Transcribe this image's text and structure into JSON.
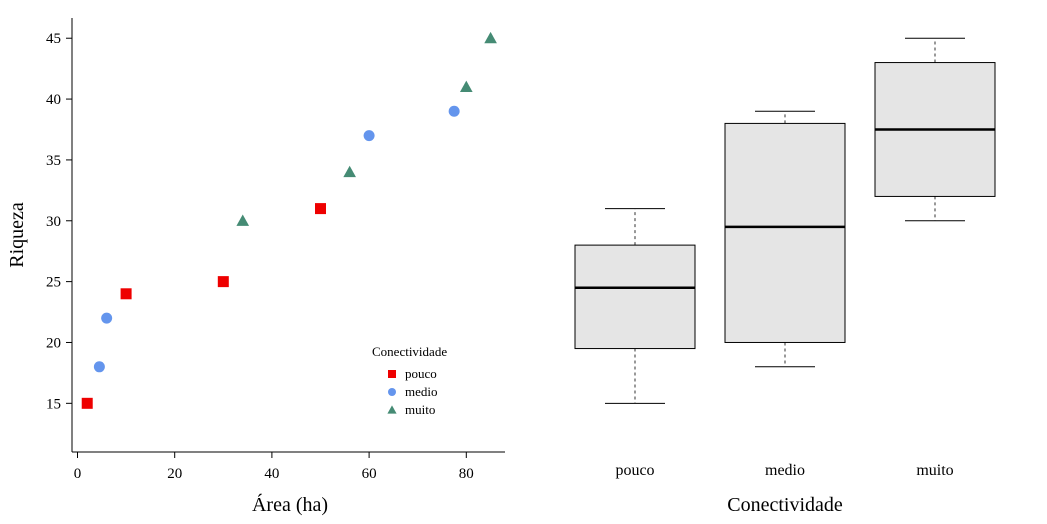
{
  "chart_data": [
    {
      "type": "scatter",
      "xlabel": "Área (ha)",
      "ylabel": "Riqueza",
      "xlim": [
        -1,
        88
      ],
      "ylim": [
        11,
        47
      ],
      "xticks": [
        0,
        20,
        40,
        60,
        80
      ],
      "yticks": [
        15,
        20,
        25,
        30,
        35,
        40,
        45
      ],
      "legend": {
        "title": "Conectividade",
        "position": "bottom-right"
      },
      "series": [
        {
          "name": "pouco",
          "color": "#ee0000",
          "marker": "square",
          "points": [
            [
              2,
              15
            ],
            [
              10,
              24
            ],
            [
              30,
              25
            ],
            [
              50,
              31
            ]
          ]
        },
        {
          "name": "medio",
          "color": "#6495ed",
          "marker": "circle",
          "points": [
            [
              4.5,
              18
            ],
            [
              6,
              22
            ],
            [
              60,
              37
            ],
            [
              77.5,
              39
            ]
          ]
        },
        {
          "name": "muito",
          "color": "#458b74",
          "marker": "triangle",
          "points": [
            [
              34,
              30
            ],
            [
              56,
              34
            ],
            [
              80,
              41
            ],
            [
              85,
              45
            ]
          ]
        }
      ]
    },
    {
      "type": "boxplot",
      "xlabel": "Conectividade",
      "ylim": [
        11,
        47
      ],
      "categories": [
        "pouco",
        "medio",
        "muito"
      ],
      "boxes": [
        {
          "category": "pouco",
          "min": 15,
          "q1": 19.5,
          "median": 24.5,
          "q3": 28,
          "max": 31
        },
        {
          "category": "medio",
          "min": 18,
          "q1": 20,
          "median": 29.5,
          "q3": 38,
          "max": 39
        },
        {
          "category": "muito",
          "min": 30,
          "q1": 32,
          "median": 37.5,
          "q3": 43,
          "max": 45
        }
      ],
      "box_fill": "#e5e5e5"
    }
  ]
}
